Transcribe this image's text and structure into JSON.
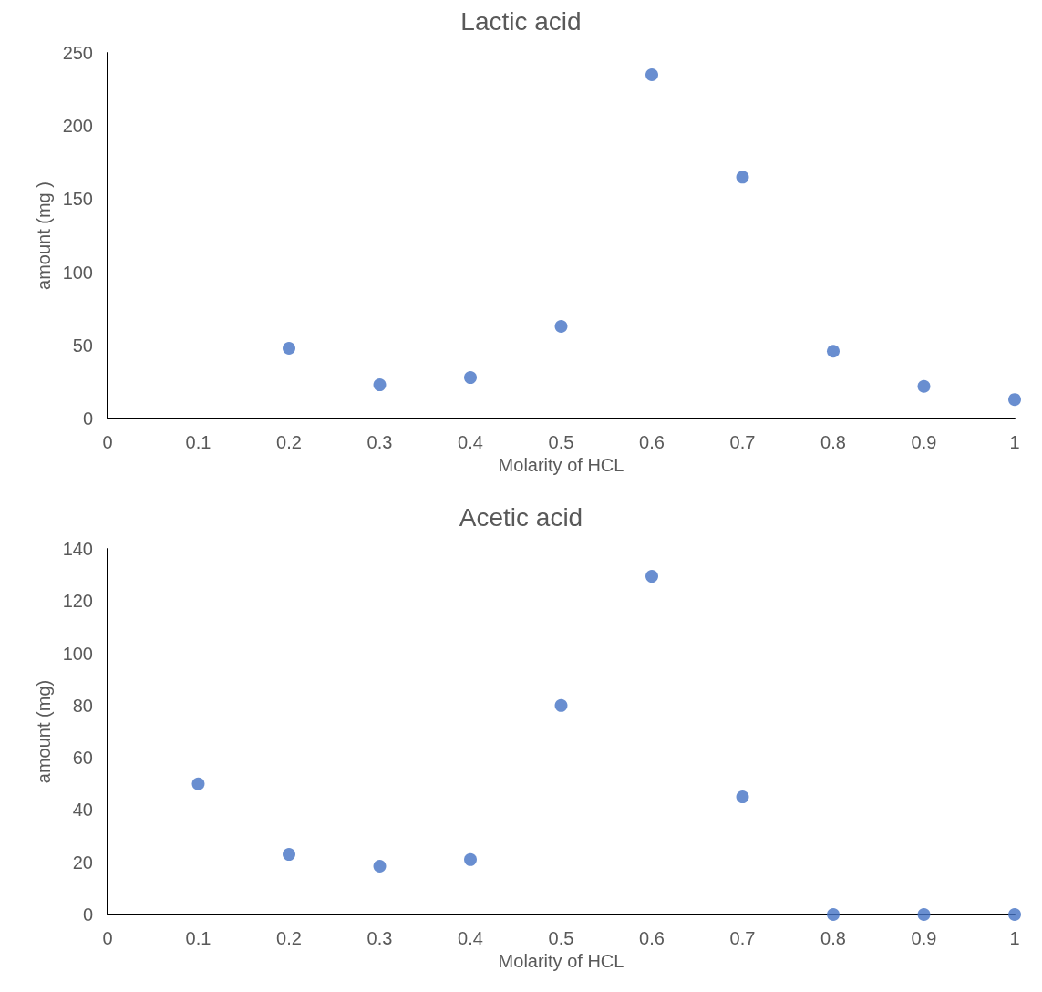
{
  "chart_data": [
    {
      "type": "scatter",
      "title": "Lactic acid",
      "xlabel": "Molarity of HCL",
      "ylabel": "amount (mg )",
      "marker": "circle",
      "series": [
        {
          "color": "#4472c4",
          "x": [
            0.2,
            0.3,
            0.4,
            0.5,
            0.6,
            0.7,
            0.8,
            0.9,
            1
          ],
          "values": [
            48,
            23,
            28,
            63,
            235,
            165,
            46,
            22,
            13
          ]
        }
      ],
      "xlim": [
        0,
        1
      ],
      "xticks": [
        0,
        0.1,
        0.2,
        0.3,
        0.4,
        0.5,
        0.6,
        0.7,
        0.8,
        0.9,
        1
      ],
      "ylim": [
        0,
        250
      ],
      "yticks": [
        0,
        50,
        100,
        150,
        200,
        250
      ]
    },
    {
      "type": "scatter",
      "title": "Acetic acid",
      "xlabel": "Molarity of HCL",
      "ylabel": "amount (mg)",
      "marker": "circle",
      "series": [
        {
          "color": "#4472c4",
          "x": [
            0.1,
            0.2,
            0.3,
            0.4,
            0.5,
            0.6,
            0.7,
            0.8,
            0.9,
            1
          ],
          "values": [
            50,
            23,
            18.5,
            21,
            80,
            129.5,
            45,
            0,
            0,
            0
          ]
        }
      ],
      "xlim": [
        0,
        1
      ],
      "xticks": [
        0,
        0.1,
        0.2,
        0.3,
        0.4,
        0.5,
        0.6,
        0.7,
        0.8,
        0.9,
        1
      ],
      "ylim": [
        0,
        140
      ],
      "yticks": [
        0,
        20,
        40,
        60,
        80,
        100,
        120,
        140
      ]
    }
  ]
}
